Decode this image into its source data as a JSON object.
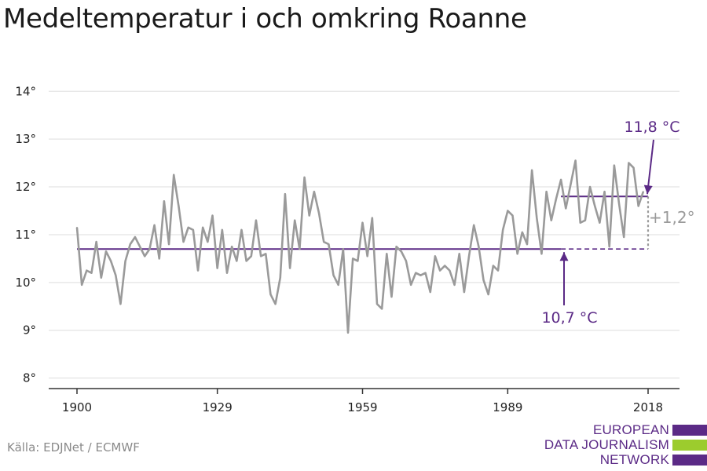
{
  "title": "Medeltemperatur i och omkring Roanne",
  "source": "Källa: EDJNet / ECMWF",
  "logo": {
    "lines": [
      "EUROPEAN",
      "DATA JOURNALISM",
      "NETWORK"
    ],
    "colors": [
      "#5b2a86",
      "#9ccc2d",
      "#5b2a86"
    ]
  },
  "colors": {
    "series": "#9a9a9a",
    "accent": "#5b2a86",
    "annotation_gray": "#9a9a9a",
    "grid": "#dddddd",
    "axis": "#333333"
  },
  "chart_data": {
    "type": "line",
    "title": "Medeltemperatur i och omkring Roanne",
    "xlabel": "",
    "ylabel": "",
    "xlim": [
      1900,
      2018
    ],
    "ylim": [
      7.6,
      14.3
    ],
    "x_ticks": [
      1900,
      1929,
      1959,
      1989,
      2018
    ],
    "x_tick_labels": [
      "1900",
      "1929",
      "1959",
      "1989",
      "2018"
    ],
    "y_ticks": [
      8,
      9,
      10,
      11,
      12,
      13,
      14
    ],
    "y_tick_labels": [
      "8°",
      "9°",
      "10°",
      "11°",
      "12°",
      "13°",
      "14°"
    ],
    "grid": true,
    "series": [
      {
        "x_start": 1900,
        "values": [
          11.15,
          9.95,
          10.25,
          10.2,
          10.85,
          10.1,
          10.65,
          10.45,
          10.15,
          9.55,
          10.45,
          10.8,
          10.95,
          10.75,
          10.55,
          10.7,
          11.2,
          10.5,
          11.7,
          10.8,
          12.25,
          11.6,
          10.85,
          11.15,
          11.1,
          10.25,
          11.15,
          10.85,
          11.4,
          10.3,
          11.1,
          10.2,
          10.75,
          10.45,
          11.1,
          10.45,
          10.55,
          11.3,
          10.55,
          10.6,
          9.75,
          9.55,
          10.1,
          11.85,
          10.3,
          11.3,
          10.7,
          12.2,
          11.4,
          11.9,
          11.45,
          10.85,
          10.8,
          10.15,
          9.95,
          10.7,
          8.95,
          10.5,
          10.45,
          11.25,
          10.55,
          11.35,
          9.55,
          9.45,
          10.6,
          9.7,
          10.75,
          10.65,
          10.45,
          9.95,
          10.2,
          10.15,
          10.2,
          9.8,
          10.55,
          10.25,
          10.35,
          10.25,
          9.95,
          10.6,
          9.8,
          10.55,
          11.2,
          10.75,
          10.05,
          9.75,
          10.35,
          10.25,
          11.1,
          11.5,
          11.4,
          10.6,
          11.05,
          10.8,
          12.35,
          11.35,
          10.6,
          11.9,
          11.3,
          11.75,
          12.15,
          11.55,
          12.05,
          12.55,
          11.25,
          11.3,
          12.0,
          11.6,
          11.25,
          11.9,
          10.75,
          12.45,
          11.65,
          10.95,
          12.5,
          12.4,
          11.6,
          11.9
        ]
      }
    ],
    "baseline": {
      "value": 10.7,
      "label": "10,7 °C",
      "x_start": 1900,
      "x_solid_end": 2000,
      "x_end": 2018
    },
    "recent_mean": {
      "value": 11.8,
      "label": "11,8 °C",
      "x_start": 2000,
      "x_end": 2018
    },
    "difference": {
      "label": "+1,2°"
    }
  }
}
